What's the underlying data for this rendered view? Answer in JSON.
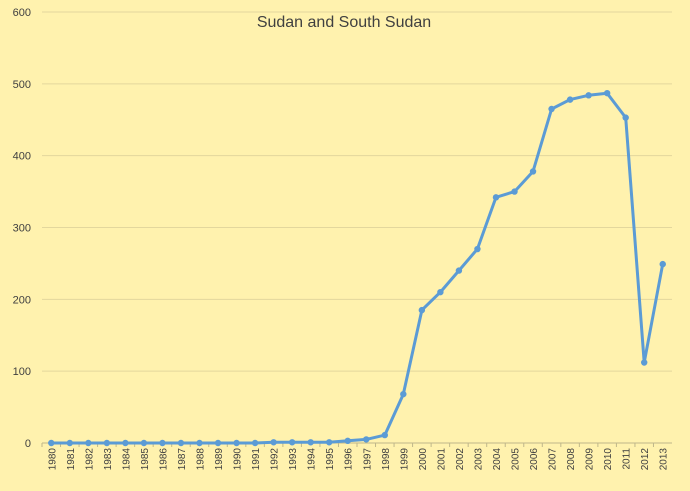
{
  "chart_data": {
    "type": "line",
    "title": "Sudan and South Sudan",
    "xlabel": "",
    "ylabel": "",
    "ylim": [
      0,
      600
    ],
    "yticks": [
      0,
      100,
      200,
      300,
      400,
      500,
      600
    ],
    "grid": true,
    "legend": "none",
    "series_color": "#5B9BD5",
    "background": "#FFF2AE",
    "categories": [
      "1980",
      "1981",
      "1982",
      "1983",
      "1984",
      "1985",
      "1986",
      "1987",
      "1988",
      "1989",
      "1990",
      "1991",
      "1992",
      "1993",
      "1994",
      "1995",
      "1996",
      "1997",
      "1998",
      "1999",
      "2000",
      "2001",
      "2002",
      "2003",
      "2004",
      "2005",
      "2006",
      "2007",
      "2008",
      "2009",
      "2010",
      "2011",
      "2012",
      "2013"
    ],
    "series": [
      {
        "values": [
          0,
          0,
          0,
          0,
          0,
          0,
          0,
          0,
          0,
          0,
          0,
          0,
          1,
          1,
          1,
          1,
          3,
          5,
          11,
          68,
          185,
          210,
          240,
          270,
          342,
          350,
          378,
          465,
          478,
          484,
          487,
          453,
          112,
          249
        ]
      }
    ]
  }
}
